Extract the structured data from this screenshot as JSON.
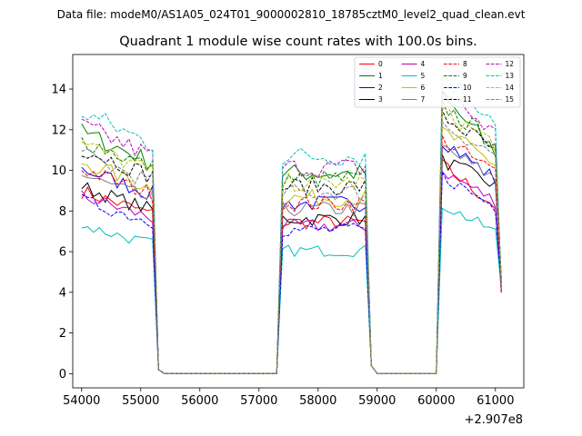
{
  "chart_data": {
    "type": "line",
    "suptitle": "Data file: modeM0/AS1A05_024T01_9000002810_18785cztM0_level2_quad_clean.evt",
    "title": "Quadrant 1 module wise count rates with 100.0s bins.",
    "xlabel": "",
    "ylabel": "",
    "x_offset_label": "+2.907e8",
    "xlim": [
      53850,
      61480
    ],
    "ylim": [
      -0.7,
      15.7
    ],
    "x_ticks": [
      54000,
      55000,
      56000,
      57000,
      58000,
      59000,
      60000,
      61000
    ],
    "x_tick_labels": [
      "54000",
      "55000",
      "56000",
      "57000",
      "58000",
      "59000",
      "60000",
      "61000"
    ],
    "y_ticks": [
      0,
      2,
      4,
      6,
      8,
      10,
      12,
      14
    ],
    "y_tick_labels": [
      "0",
      "2",
      "4",
      "6",
      "8",
      "10",
      "12",
      "14"
    ],
    "legend_position": "top-right",
    "segments": [
      {
        "start": 54000,
        "end": 55200
      },
      {
        "start": 57400,
        "end": 58800
      },
      {
        "start": 60100,
        "end": 61000
      }
    ],
    "transition_values": {
      "dip_left": 0.2,
      "dip_right": 0.4,
      "final": 4.0
    },
    "series": [
      {
        "name": "0",
        "color": "#ff0000",
        "dash": "solid",
        "level": 8.0,
        "end_factor": 1.03
      },
      {
        "name": "1",
        "color": "#008000",
        "dash": "solid",
        "level": 10.6,
        "end_factor": 1.03
      },
      {
        "name": "2",
        "color": "#0000ff",
        "dash": "solid",
        "level": 9.0,
        "end_factor": 1.06
      },
      {
        "name": "3",
        "color": "#000000",
        "dash": "solid",
        "level": 8.2,
        "end_factor": 1.13
      },
      {
        "name": "4",
        "color": "#bf00bf",
        "dash": "solid",
        "level": 7.8,
        "end_factor": 1.09
      },
      {
        "name": "5",
        "color": "#00bfbf",
        "dash": "solid",
        "level": 6.5,
        "end_factor": 1.07
      },
      {
        "name": "6",
        "color": "#bfbf00",
        "dash": "solid",
        "level": 9.3,
        "end_factor": 1.11
      },
      {
        "name": "7",
        "color": "#808080",
        "dash": "solid",
        "level": 8.7,
        "end_factor": 1.1
      },
      {
        "name": "8",
        "color": "#ff0000",
        "dash": "dashed",
        "level": 9.0,
        "end_factor": 1.1
      },
      {
        "name": "9",
        "color": "#008000",
        "dash": "dashed",
        "level": 10.3,
        "end_factor": 1.1
      },
      {
        "name": "10",
        "color": "#0000ff",
        "dash": "dashed",
        "level": 7.6,
        "end_factor": 1.08
      },
      {
        "name": "11",
        "color": "#000000",
        "dash": "dashed",
        "level": 9.9,
        "end_factor": 1.11
      },
      {
        "name": "12",
        "color": "#bf00bf",
        "dash": "dashed",
        "level": 10.9,
        "end_factor": 1.08
      },
      {
        "name": "13",
        "color": "#00bfbf",
        "dash": "dashed",
        "level": 11.5,
        "end_factor": 1.09
      },
      {
        "name": "14",
        "color": "#bfbf00",
        "dash": "dashed",
        "level": 10.1,
        "end_factor": 1.12
      },
      {
        "name": "15",
        "color": "#808080",
        "dash": "dashed",
        "level": 9.6,
        "end_factor": 1.12
      }
    ]
  }
}
